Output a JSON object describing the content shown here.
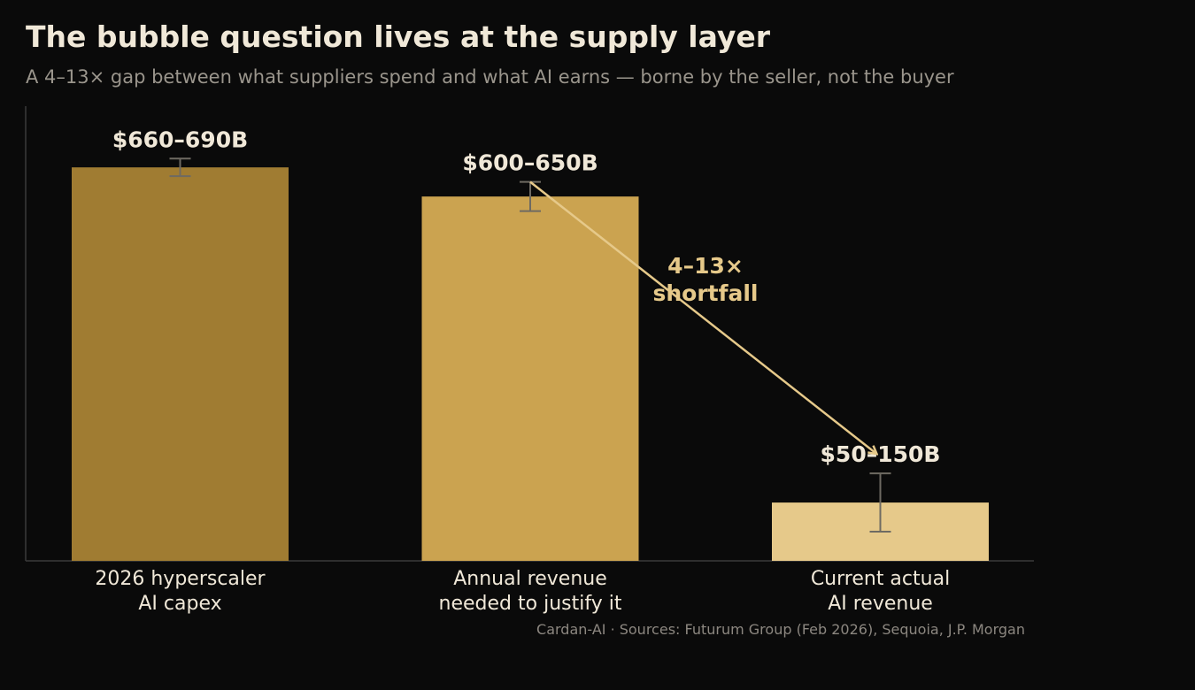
{
  "title": "The bubble question lives at the supply layer",
  "subtitle": "A 4–13× gap between what suppliers spend and what AI earns — borne by the seller, not the buyer",
  "source": "Cardan-AI  ·  Sources: Futurum Group (Feb 2026), Sequoia, J.P. Morgan",
  "chart_data": {
    "type": "bar",
    "categories": [
      [
        "2026 hyperscaler",
        "AI capex"
      ],
      [
        "Annual revenue",
        "needed to justify it"
      ],
      [
        "Current actual",
        "AI revenue"
      ]
    ],
    "values": [
      675,
      625,
      100
    ],
    "ranges": [
      [
        660,
        690
      ],
      [
        600,
        650
      ],
      [
        50,
        150
      ]
    ],
    "value_labels": [
      "$660–690B",
      "$600–650B",
      "$50–150B"
    ],
    "ylim": [
      0,
      780
    ],
    "colors": [
      "#a07c32",
      "#cba350",
      "#e6c98a"
    ],
    "annotation": {
      "lines": [
        "4–13×",
        "shortfall"
      ],
      "color": "#e6c98a",
      "from_bar": 1,
      "to_bar": 2
    },
    "grid": false,
    "legend": "none"
  }
}
